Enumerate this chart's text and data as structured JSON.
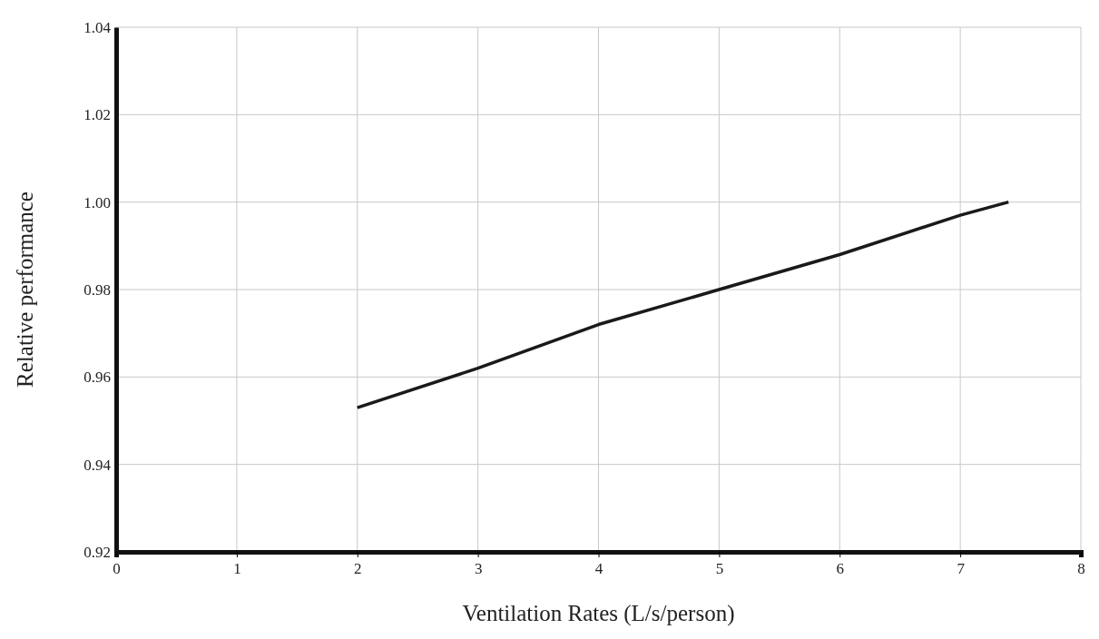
{
  "chart_data": {
    "type": "line",
    "xlabel": "Ventilation Rates (L/s/person)",
    "ylabel": "Relative performance",
    "x": [
      2,
      3,
      4,
      5,
      6,
      7,
      7.4
    ],
    "series": [
      {
        "color": "#1a1a1a",
        "values": [
          0.953,
          0.962,
          0.972,
          0.98,
          0.988,
          0.997,
          1.0
        ]
      }
    ],
    "xlim": [
      0,
      8
    ],
    "xticks": [
      0,
      1,
      2,
      3,
      4,
      5,
      6,
      7,
      8
    ],
    "ylim": [
      0.92,
      1.04
    ],
    "yticks": [
      {
        "value": 0.92,
        "label": "0.92"
      },
      {
        "value": 0.94,
        "label": "0.94"
      },
      {
        "value": 0.96,
        "label": "0.96"
      },
      {
        "value": 0.98,
        "label": "0.98"
      },
      {
        "value": 1.0,
        "label": "1.00"
      },
      {
        "value": 1.02,
        "label": "1.02"
      },
      {
        "value": 1.04,
        "label": "1.04"
      }
    ],
    "grid": true,
    "marker": "none",
    "line_style": "solid"
  }
}
